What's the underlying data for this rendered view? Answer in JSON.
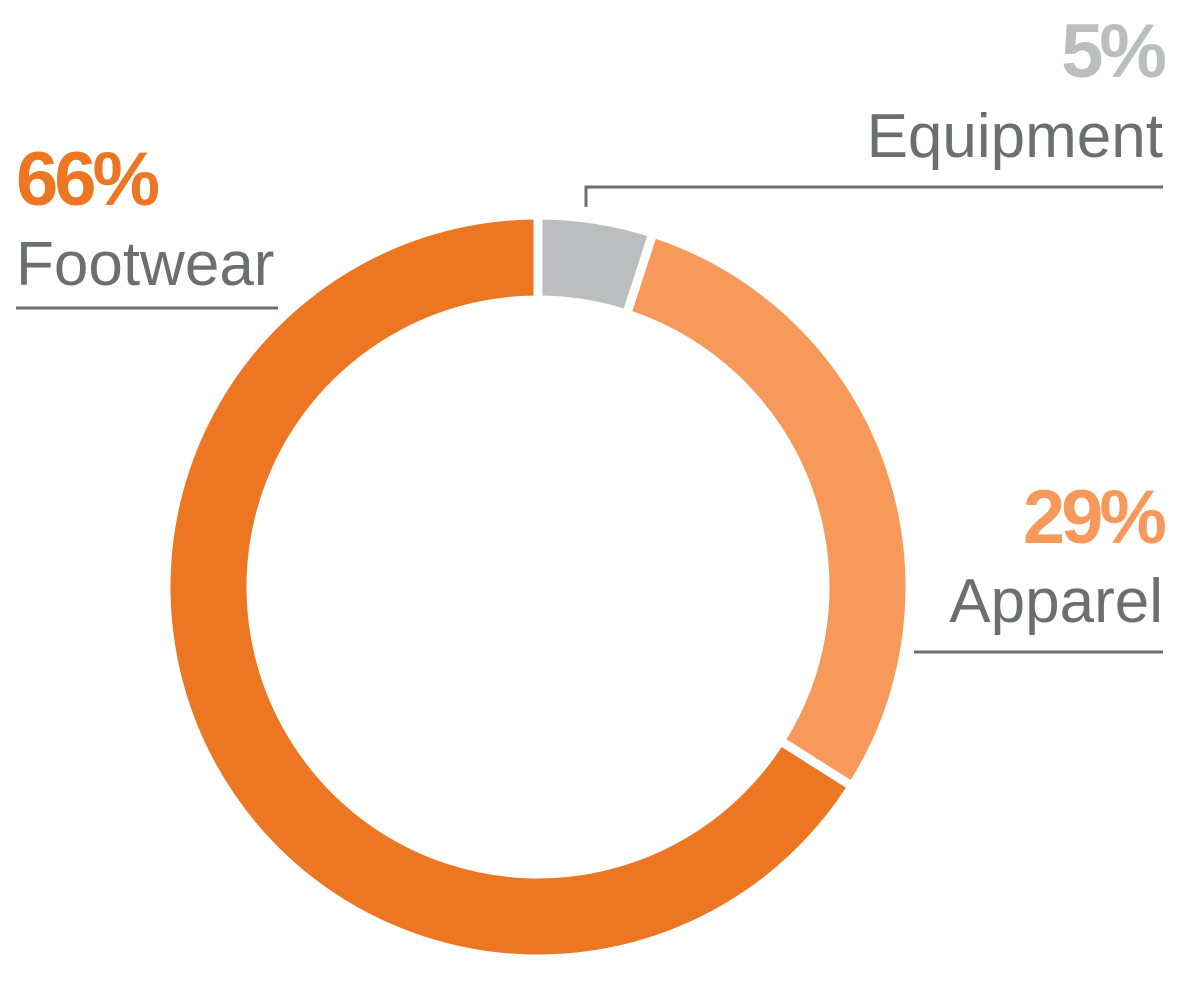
{
  "chart_data": {
    "type": "donut",
    "categories": [
      "Equipment",
      "Apparel",
      "Footwear"
    ],
    "values": [
      5,
      29,
      66
    ],
    "value_labels": [
      "5%",
      "29%",
      "66%"
    ],
    "colors": [
      "#bcbdbf",
      "#f6995b",
      "#ec7622"
    ]
  }
}
